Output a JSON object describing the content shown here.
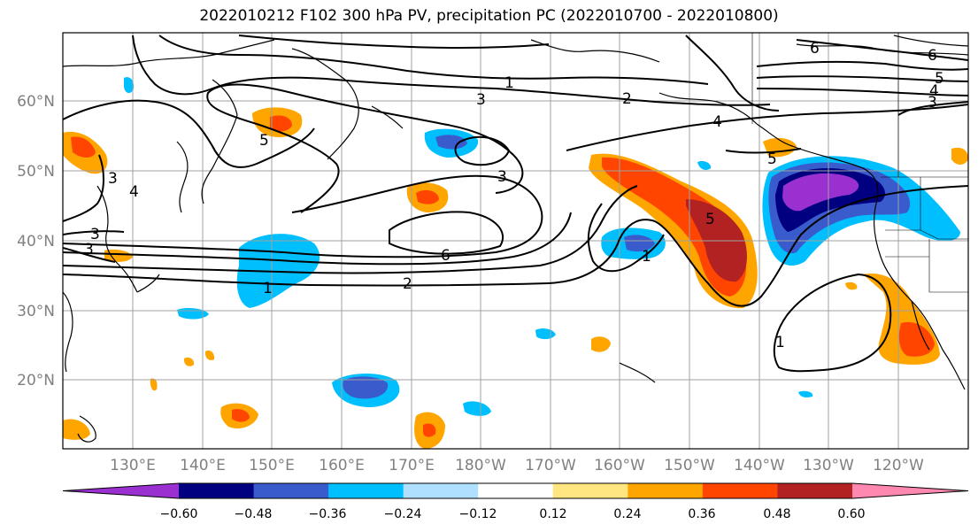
{
  "title": "2022010212 F102 300 hPa PV, precipitation PC (2022010700 - 2022010800)",
  "lat_labels": [
    "60°N",
    "50°N",
    "40°N",
    "30°N",
    "20°N"
  ],
  "lon_labels": [
    "130°E",
    "140°E",
    "150°E",
    "160°E",
    "170°E",
    "180°W",
    "170°W",
    "160°W",
    "150°W",
    "140°W",
    "130°W",
    "120°W"
  ],
  "colorbar": {
    "ticks": [
      "−0.60",
      "−0.48",
      "−0.36",
      "−0.24",
      "−0.12",
      "0.12",
      "0.24",
      "0.36",
      "0.48",
      "0.60"
    ],
    "colors": [
      "#9b30d0",
      "#000080",
      "#3a5bcb",
      "#00bfff",
      "#b0e0ff",
      "#ffffff",
      "#ffe680",
      "#ffa500",
      "#ff4500",
      "#b22222",
      "#ff88b0"
    ]
  },
  "contour_labels": [
    "1",
    "2",
    "3",
    "4",
    "5",
    "6",
    "3",
    "5",
    "3",
    "6",
    "1",
    "2",
    "1",
    "4",
    "5",
    "6",
    "5",
    "4",
    "3",
    "1",
    "3",
    "3"
  ]
}
